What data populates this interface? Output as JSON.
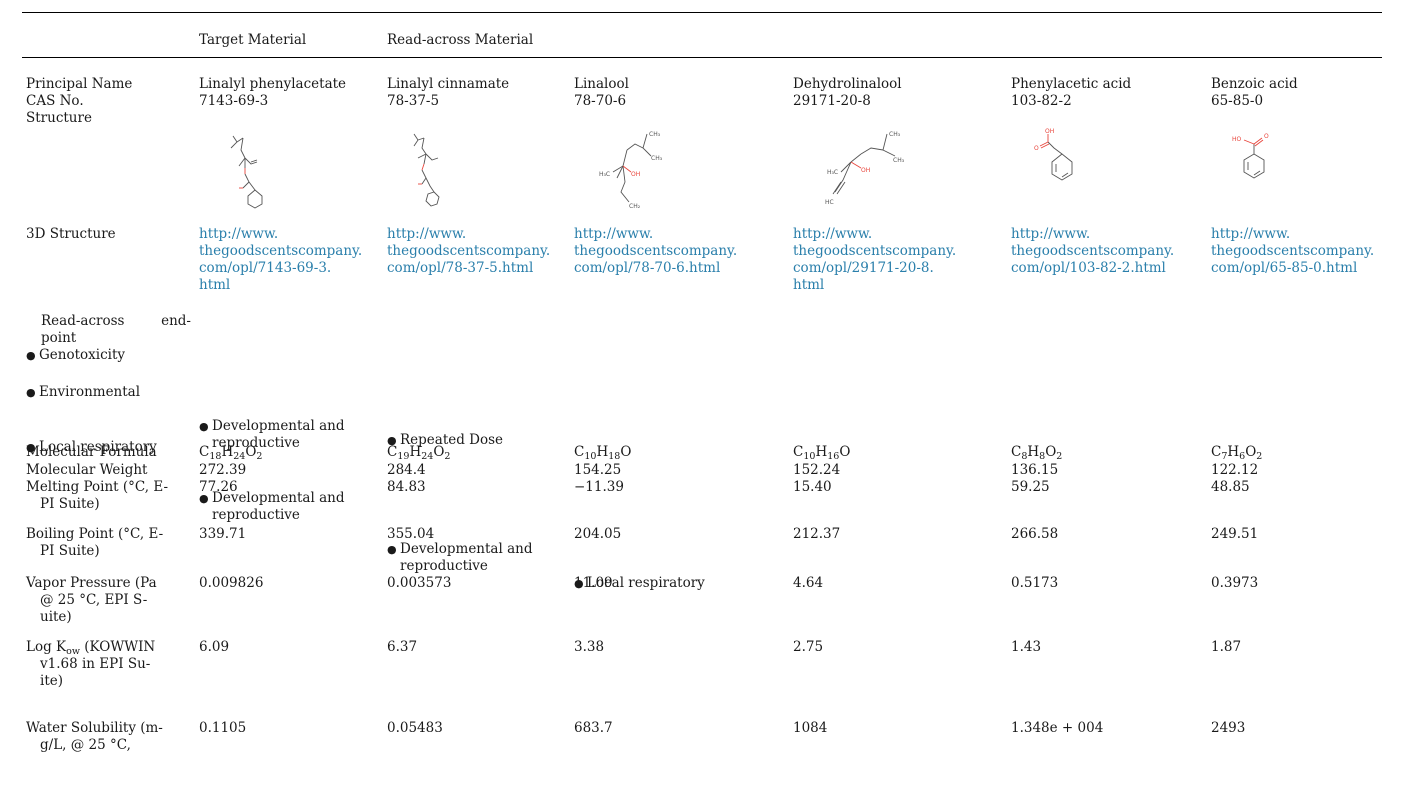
{
  "header": {
    "target_label": "Target Material",
    "readacross_label": "Read-across Material"
  },
  "rows": {
    "principal_name_label": "Principal Name",
    "cas_label": "CAS No.",
    "structure_label": "Structure",
    "structure3d_label": "3D Structure",
    "readacross_endpoint_label": [
      "Read-across",
      "end-",
      "point"
    ],
    "molecular_formula_label": "Molecular Formula",
    "molecular_weight_label": "Molecular Weight",
    "melting_point_label": [
      "Melting Point (°C, E-",
      "PI Suite)"
    ],
    "boiling_point_label": [
      "Boiling Point (°C, E-",
      "PI Suite)"
    ],
    "vapor_pressure_label": [
      "Vapor Pressure (Pa",
      "@ 25 °C, EPI S-",
      "uite)"
    ],
    "logkow_label": [
      "(KOWWIN",
      "v1.68 in EPI Su-",
      "ite)"
    ],
    "logkow_prefix": "Log K",
    "logkow_sub": "ow",
    "water_solubility_label": [
      "Water Solubility (m-",
      "g/L, @ 25 °C,"
    ]
  },
  "endpoint_bullets": {
    "col0": [
      "Genotoxicity",
      "Environmental",
      "Local respiratory"
    ],
    "col1_a": [
      "Developmental and",
      "reproductive"
    ],
    "col1_b": [
      "Developmental and",
      "reproductive"
    ],
    "col2_a": "Repeated Dose",
    "col2_b": [
      "Developmental and",
      "reproductive"
    ],
    "col3": "Local respiratory"
  },
  "materials": [
    {
      "name": "Linalyl phenylacetate",
      "cas": "7143-69-3",
      "url_lines": [
        "http://www.",
        "thegoodscentscompany.",
        "com/opl/7143-69-3.",
        "html"
      ],
      "formula": [
        [
          "C",
          "18"
        ],
        [
          "H",
          "24"
        ],
        [
          "O",
          "2"
        ]
      ],
      "mw": "272.39",
      "mp": "77.26",
      "bp": "339.71",
      "vp": "0.009826",
      "logkow": "6.09",
      "ws": "0.1105"
    },
    {
      "name": "Linalyl cinnamate",
      "cas": "78-37-5",
      "url_lines": [
        "http://www.",
        "thegoodscentscompany.",
        "com/opl/78-37-5.html"
      ],
      "formula": [
        [
          "C",
          "19"
        ],
        [
          "H",
          "24"
        ],
        [
          "O",
          "2"
        ]
      ],
      "mw": "284.4",
      "mp": "84.83",
      "bp": "355.04",
      "vp": "0.003573",
      "logkow": "6.37",
      "ws": "0.05483"
    },
    {
      "name": "Linalool",
      "cas": "78-70-6",
      "url_lines": [
        "http://www.",
        "thegoodscentscompany.",
        "com/opl/78-70-6.html"
      ],
      "formula": [
        [
          "C",
          "10"
        ],
        [
          "H",
          "18"
        ],
        [
          "O",
          ""
        ]
      ],
      "mw": "154.25",
      "mp": "−11.39",
      "bp": "204.05",
      "vp": "11.09",
      "logkow": "3.38",
      "ws": "683.7"
    },
    {
      "name": "Dehydrolinalool",
      "cas": "29171-20-8",
      "url_lines": [
        "http://www.",
        "thegoodscentscompany.",
        "com/opl/29171-20-8.",
        "html"
      ],
      "formula": [
        [
          "C",
          "10"
        ],
        [
          "H",
          "16"
        ],
        [
          "O",
          ""
        ]
      ],
      "mw": "152.24",
      "mp": "15.40",
      "bp": "212.37",
      "vp": "4.64",
      "logkow": "2.75",
      "ws": "1084"
    },
    {
      "name": "Phenylacetic acid",
      "cas": "103-82-2",
      "url_lines": [
        "http://www.",
        "thegoodscentscompany.",
        "com/opl/103-82-2.html"
      ],
      "formula": [
        [
          "C",
          "8"
        ],
        [
          "H",
          "8"
        ],
        [
          "O",
          "2"
        ]
      ],
      "mw": "136.15",
      "mp": "59.25",
      "bp": "266.58",
      "vp": "0.5173",
      "logkow": "1.43",
      "ws": "1.348e + 004"
    },
    {
      "name": "Benzoic acid",
      "cas": "65-85-0",
      "url_lines": [
        "http://www.",
        "thegoodscentscompany.",
        "com/opl/65-85-0.html"
      ],
      "formula": [
        [
          "C",
          "7"
        ],
        [
          "H",
          "6"
        ],
        [
          "O",
          "2"
        ]
      ],
      "mw": "122.12",
      "mp": "48.85",
      "bp": "249.51",
      "vp": "0.3973",
      "logkow": "1.87",
      "ws": "2493"
    }
  ],
  "structure_atom_labels": {
    "oh": "OH",
    "ho": "HO",
    "o": "O",
    "h3c": "H₃C",
    "ch3": "CH₃",
    "ch2": "CH₂",
    "hc": "HC"
  },
  "colors": {
    "link": "#2a7fab",
    "rule": "#000000",
    "heteroatom": "#e8453c"
  }
}
